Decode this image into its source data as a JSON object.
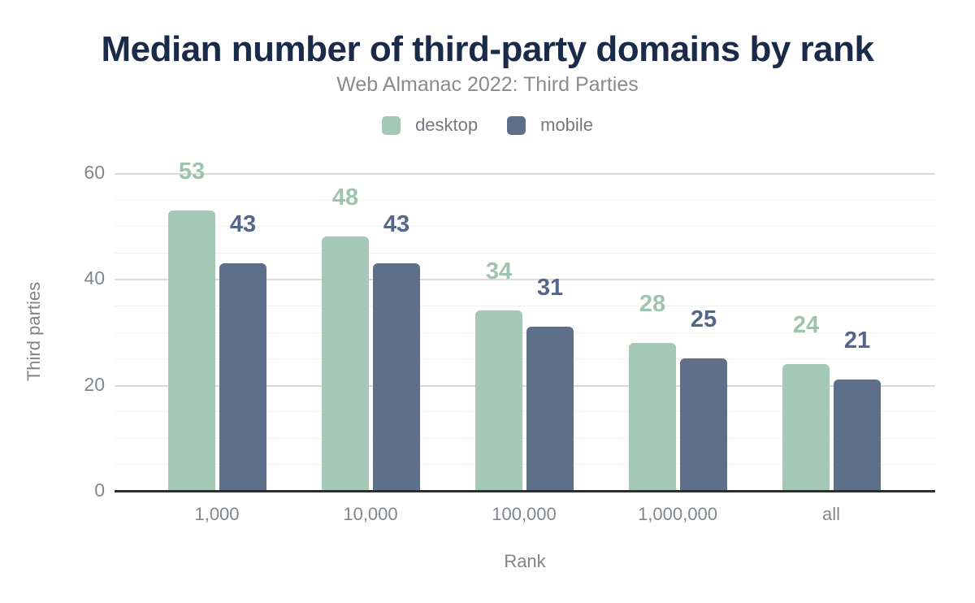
{
  "chart_data": {
    "type": "bar",
    "title": "Median number of third-party domains by rank",
    "subtitle": "Web Almanac 2022: Third Parties",
    "xlabel": "Rank",
    "ylabel": "Third parties",
    "categories": [
      "1,000",
      "10,000",
      "100,000",
      "1,000,000",
      "all"
    ],
    "series": [
      {
        "name": "desktop",
        "color": "#a6c9b7",
        "label_color": "#9ec4b0",
        "values": [
          53,
          48,
          34,
          28,
          24
        ]
      },
      {
        "name": "mobile",
        "color": "#5d6f89",
        "label_color": "#54678b",
        "values": [
          43,
          43,
          31,
          25,
          21
        ]
      }
    ],
    "ylim": [
      0,
      60
    ],
    "yticks": [
      0,
      20,
      40,
      60
    ],
    "minor_grid_step": 5,
    "grid": "horizontal",
    "legend_position": "top-center",
    "data_labels": "above bars, colored per series"
  },
  "colors": {
    "title": "#1a2b49",
    "subtitle": "#8b8b8b",
    "tick_label": "#82878b",
    "axis_title": "#808487",
    "legend_text": "#75797d",
    "axis_line": "#2e2e2e",
    "gridline_major": "#dadada",
    "gridline_minor": "#f0f0f0",
    "background": "#ffffff"
  }
}
